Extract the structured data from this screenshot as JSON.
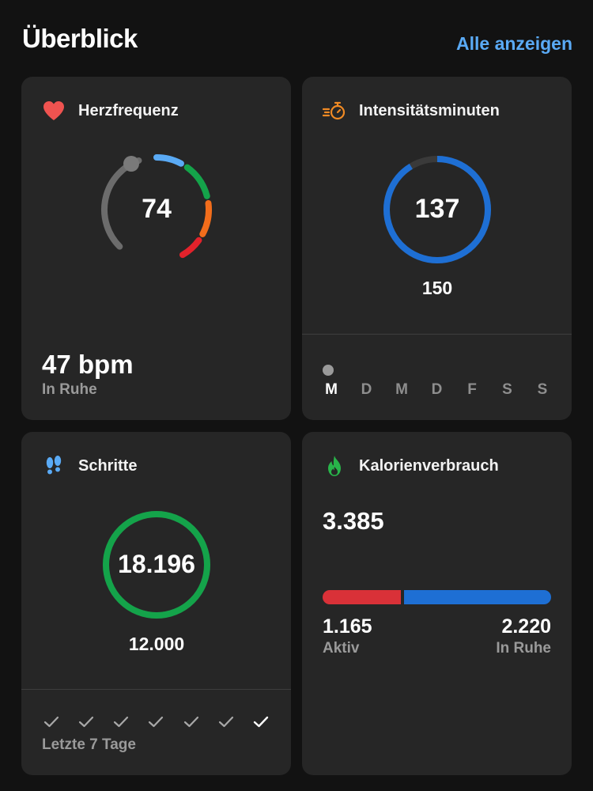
{
  "header": {
    "title": "Überblick",
    "link": "Alle anzeigen"
  },
  "colors": {
    "accent": "#5aaaf5",
    "card": "#262626",
    "background": "#121212",
    "heart": "#ef5350",
    "intensity_icon": "#f08a24",
    "intensity_ring": "#1e6fd4",
    "steps_ring": "#14a34a",
    "active_bar": "#d93138",
    "rest_bar": "#1e6fd4",
    "calorie_icon": "#28b54a"
  },
  "heart_rate": {
    "title": "Herzfrequenz",
    "icon": "heart-icon",
    "current": "74",
    "resting_value": "47 bpm",
    "resting_label": "In Ruhe",
    "zone_colors": [
      "#6c6c6c",
      "#5aaaf5",
      "#14a34a",
      "#f26d1b",
      "#e3222b"
    ]
  },
  "intensity": {
    "title": "Intensitätsminuten",
    "icon": "stopwatch-icon",
    "value": "137",
    "goal": "150",
    "progress": 0.913,
    "days": [
      "M",
      "D",
      "M",
      "D",
      "F",
      "S",
      "S"
    ],
    "active_day_index": 0
  },
  "steps": {
    "title": "Schritte",
    "icon": "footprints-icon",
    "value": "18.196",
    "goal": "12.000",
    "progress": 1.0,
    "week_label": "Letzte 7 Tage",
    "check_icon": "check-icon",
    "checks": 7
  },
  "calories": {
    "title": "Kalorienverbrauch",
    "icon": "flame-icon",
    "total": "3.385",
    "active_value": "1.165",
    "active_label": "Aktiv",
    "rest_value": "2.220",
    "rest_label": "In Ruhe",
    "active_fraction": 0.344
  }
}
